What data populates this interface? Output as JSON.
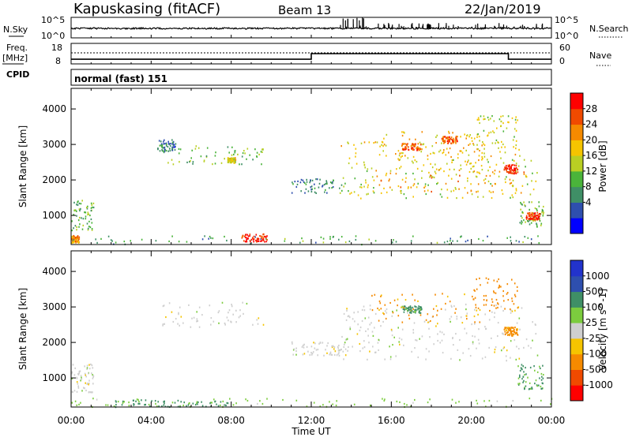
{
  "header": {
    "station": "Kapuskasing (fitACF)",
    "beam": "Beam 13",
    "date": "22/Jan/2019"
  },
  "top_panels": {
    "nsky_label": "N.Sky",
    "nsky_ticks": [
      "10^5",
      "10^0"
    ],
    "nsearch_label": "N.Search",
    "freq_label_line1": "Freq.",
    "freq_label_line2": "[MHz]",
    "freq_ticks": [
      "18",
      "8"
    ],
    "nave_label": "Nave",
    "nave_ticks": [
      "60",
      "0"
    ],
    "cpid_label": "CPID",
    "cpid_value": "normal (fast) 151"
  },
  "colors": {
    "power_scale": [
      "#0000ff",
      "#2e4fae",
      "#3f8f66",
      "#4ab43a",
      "#b9cf23",
      "#f5c400",
      "#f58a00",
      "#f04a00",
      "#ff0000"
    ],
    "velocity_scale": [
      "#2233cc",
      "#2e4fae",
      "#3f8f66",
      "#7ccc3e",
      "#cfcfcf",
      "#f5c400",
      "#f58a00",
      "#f04a00",
      "#ff0000"
    ]
  },
  "chart_data": [
    {
      "type": "heatmap",
      "name": "power-panel",
      "xlabel": "Time UT",
      "ylabel": "Slant Range [km]",
      "x_ticks": [
        "00:00",
        "04:00",
        "08:00",
        "12:00",
        "16:00",
        "20:00",
        "00:00"
      ],
      "xlim_hours": [
        0,
        24
      ],
      "y_ticks": [
        1000,
        2000,
        3000,
        4000
      ],
      "ylim": [
        180,
        4580
      ],
      "colorbar_label": "Power [dB]",
      "colorbar_ticks": [
        "28",
        "24",
        "20",
        "16",
        "12",
        "8",
        "4"
      ],
      "colorbar_range": [
        0,
        30
      ],
      "regions": [
        {
          "t": [
            4.3,
            5.2
          ],
          "r": [
            2800,
            3150
          ],
          "v": 7
        },
        {
          "t": [
            4.8,
            9.6
          ],
          "r": [
            2450,
            3000
          ],
          "v": 12
        },
        {
          "t": [
            7.8,
            8.2
          ],
          "r": [
            2500,
            2650
          ],
          "v": 17
        },
        {
          "t": [
            0.0,
            1.1
          ],
          "r": [
            600,
            1450
          ],
          "v": 11
        },
        {
          "t": [
            0.0,
            0.4
          ],
          "r": [
            250,
            450
          ],
          "v": 22
        },
        {
          "t": [
            0.0,
            24.0
          ],
          "r": [
            200,
            450
          ],
          "v": 10
        },
        {
          "t": [
            8.5,
            9.8
          ],
          "r": [
            280,
            500
          ],
          "v": 27
        },
        {
          "t": [
            11.0,
            13.5
          ],
          "r": [
            1650,
            2050
          ],
          "v": 8
        },
        {
          "t": [
            13.4,
            23.3
          ],
          "r": [
            1500,
            2650
          ],
          "v": 16
        },
        {
          "t": [
            15.0,
            23.0
          ],
          "r": [
            1650,
            2300
          ],
          "v": 20
        },
        {
          "t": [
            13.4,
            22.5
          ],
          "r": [
            2650,
            3100
          ],
          "v": 18
        },
        {
          "t": [
            15.0,
            20.5
          ],
          "r": [
            2300,
            3400
          ],
          "v": 18
        },
        {
          "t": [
            20.0,
            22.3
          ],
          "r": [
            2900,
            3850
          ],
          "v": 16
        },
        {
          "t": [
            21.6,
            22.3
          ],
          "r": [
            2200,
            2450
          ],
          "v": 27
        },
        {
          "t": [
            16.5,
            17.5
          ],
          "r": [
            2850,
            3050
          ],
          "v": 24
        },
        {
          "t": [
            18.5,
            19.3
          ],
          "r": [
            3050,
            3250
          ],
          "v": 24
        },
        {
          "t": [
            22.3,
            23.6
          ],
          "r": [
            700,
            1400
          ],
          "v": 12
        },
        {
          "t": [
            22.7,
            23.4
          ],
          "r": [
            900,
            1100
          ],
          "v": 26
        }
      ]
    },
    {
      "type": "heatmap",
      "name": "velocity-panel",
      "xlabel": "Time UT",
      "ylabel": "Slant Range [km]",
      "x_ticks": [
        "00:00",
        "04:00",
        "08:00",
        "12:00",
        "16:00",
        "20:00",
        "00:00"
      ],
      "xlim_hours": [
        0,
        24
      ],
      "y_ticks": [
        1000,
        2000,
        3000,
        4000
      ],
      "ylim": [
        180,
        4580
      ],
      "colorbar_label": "Velocity [m s^-1]",
      "colorbar_ticks": [
        "1000",
        "500",
        "100",
        "25",
        "-25",
        "-100",
        "-500",
        "-1000"
      ],
      "colorbar_range": [
        -1000,
        1000
      ],
      "regions": [
        {
          "t": [
            4.3,
            9.6
          ],
          "r": [
            2450,
            3150
          ],
          "v": 0
        },
        {
          "t": [
            0.0,
            1.1
          ],
          "r": [
            600,
            1450
          ],
          "v": 0
        },
        {
          "t": [
            0.0,
            24.0
          ],
          "r": [
            200,
            450
          ],
          "v": 50
        },
        {
          "t": [
            2.0,
            8.0
          ],
          "r": [
            200,
            400
          ],
          "v": 150
        },
        {
          "t": [
            11.0,
            13.5
          ],
          "r": [
            1650,
            2050
          ],
          "v": 0
        },
        {
          "t": [
            13.4,
            23.3
          ],
          "r": [
            1500,
            2650
          ],
          "v": 0
        },
        {
          "t": [
            13.4,
            22.5
          ],
          "r": [
            2650,
            3100
          ],
          "v": 0
        },
        {
          "t": [
            15.0,
            20.5
          ],
          "r": [
            2550,
            3400
          ],
          "v": -120
        },
        {
          "t": [
            20.0,
            22.3
          ],
          "r": [
            2900,
            3850
          ],
          "v": -300
        },
        {
          "t": [
            21.6,
            22.3
          ],
          "r": [
            2200,
            2450
          ],
          "v": -150
        },
        {
          "t": [
            22.3,
            23.6
          ],
          "r": [
            700,
            1400
          ],
          "v": 120
        },
        {
          "t": [
            16.5,
            17.5
          ],
          "r": [
            2850,
            3050
          ],
          "v": 150
        }
      ]
    }
  ]
}
